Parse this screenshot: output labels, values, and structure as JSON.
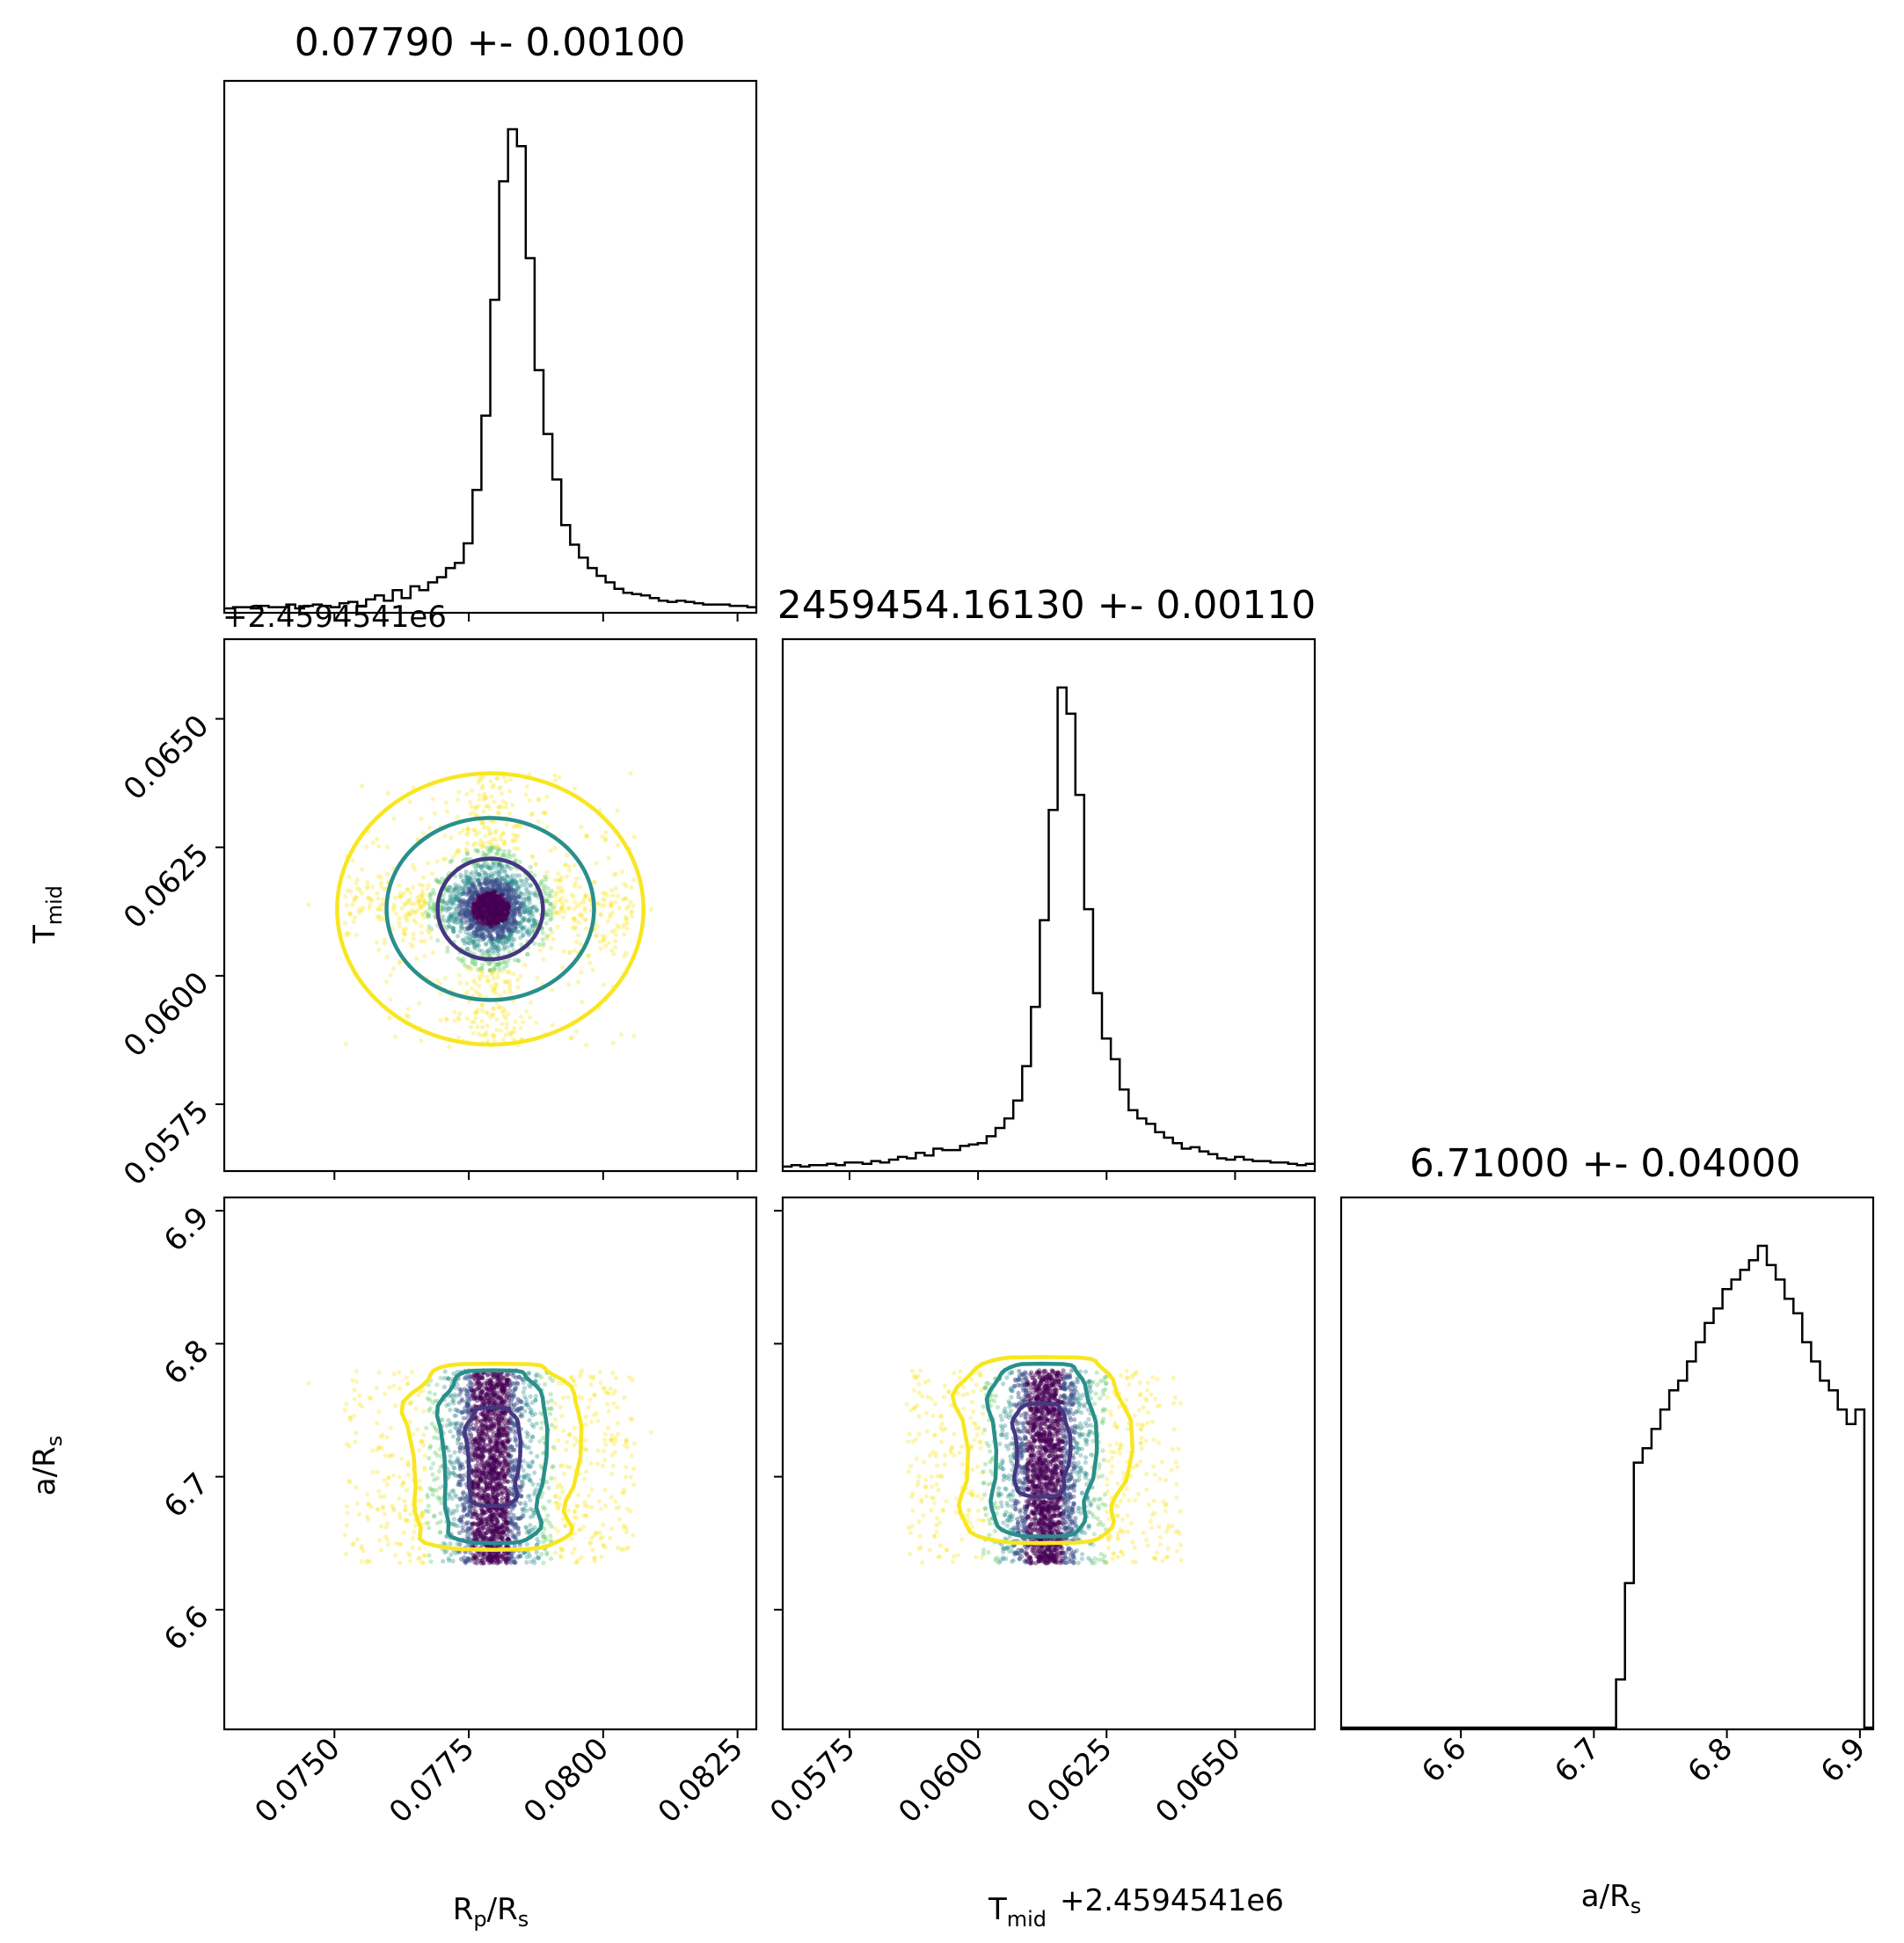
{
  "chart_data": {
    "type": "corner",
    "parameters": [
      {
        "key": "rprs",
        "label_main": "R",
        "label_sub": "p",
        "label_mid": "/R",
        "label_sub2": "s",
        "title": "0.07790 +- 0.00100",
        "range": [
          0.07295,
          0.08285
        ],
        "ticks": [
          0.075,
          0.0775,
          0.08,
          0.0825
        ],
        "tick_labels": [
          "0.0750",
          "0.0775",
          "0.0800",
          "0.0825"
        ],
        "offset_label": "+2.4594541e6"
      },
      {
        "key": "tmid",
        "label_main": "T",
        "label_sub": "mid",
        "label_mid": "",
        "label_sub2": "",
        "title": "2459454.16130 +- 0.00110",
        "range": [
          0.0562,
          0.06655
        ],
        "ticks": [
          0.0575,
          0.06,
          0.0625,
          0.065
        ],
        "tick_labels": [
          "0.0575",
          "0.0600",
          "0.0625",
          "0.0650"
        ],
        "offset_label": "+2.4594541e6"
      },
      {
        "key": "ars",
        "label_main": "a",
        "label_sub": "",
        "label_mid": "/R",
        "label_sub2": "s",
        "title": "6.71000 +- 0.04000",
        "range": [
          6.51,
          6.91
        ],
        "ticks": [
          6.6,
          6.7,
          6.8,
          6.9
        ],
        "tick_labels": [
          "6.6",
          "6.7",
          "6.8",
          "6.9"
        ]
      }
    ],
    "histograms": {
      "rprs": {
        "bins": 60,
        "counts": [
          2,
          3,
          3,
          2,
          4,
          3,
          3,
          5,
          2,
          4,
          5,
          4,
          3,
          6,
          7,
          4,
          9,
          12,
          8,
          16,
          10,
          19,
          16,
          22,
          26,
          33,
          37,
          52,
          93,
          150,
          239,
          330,
          370,
          357,
          271,
          185,
          136,
          101,
          66,
          51,
          41,
          33,
          27,
          22,
          17,
          14,
          13,
          12,
          10,
          8,
          7,
          8,
          7,
          6,
          5,
          5,
          5,
          4,
          4,
          3
        ]
      },
      "tmid": {
        "bins": 60,
        "counts": [
          2,
          3,
          2,
          3,
          3,
          4,
          3,
          5,
          5,
          4,
          6,
          5,
          7,
          9,
          8,
          12,
          10,
          15,
          14,
          14,
          17,
          18,
          19,
          24,
          30,
          37,
          50,
          75,
          118,
          181,
          261,
          350,
          331,
          272,
          189,
          128,
          95,
          80,
          58,
          43,
          37,
          33,
          27,
          23,
          19,
          15,
          16,
          13,
          11,
          8,
          7,
          9,
          7,
          6,
          6,
          5,
          5,
          4,
          3,
          4
        ]
      },
      "ars": {
        "bins": 60,
        "counts": [
          0,
          0,
          0,
          0,
          0,
          0,
          0,
          0,
          0,
          0,
          0,
          0,
          0,
          0,
          0,
          0,
          0,
          0,
          0,
          0,
          0,
          0,
          0,
          0,
          0,
          0,
          0,
          0,
          0,
          0,
          0,
          10,
          30,
          55,
          58,
          62,
          66,
          70,
          72,
          76,
          80,
          84,
          87,
          91,
          93,
          95,
          97,
          100,
          96,
          93,
          89,
          86,
          80,
          76,
          72,
          70,
          66,
          63,
          66,
          0
        ]
      }
    },
    "scatter": {
      "rprs_mean": 0.0779,
      "rprs_sigma": 0.0003,
      "tmid_mean": 0.0613,
      "tmid_sigma": 0.0003,
      "ars_low": 6.635,
      "ars_high": 6.78,
      "n_points": 2600,
      "seed": 12345
    },
    "contours": {
      "tmid_vs_rprs": [
        {
          "level": "inner",
          "center": [
            0.0779,
            0.0613
          ],
          "radii": [
            0.00098,
            0.00098
          ],
          "color": "#453781"
        },
        {
          "level": "middle",
          "center": [
            0.0779,
            0.0613
          ],
          "radii": [
            0.00193,
            0.00177
          ],
          "color": "#2a8f8b"
        },
        {
          "level": "outer",
          "center": [
            0.0779,
            0.0613
          ],
          "radii": [
            0.00285,
            0.00264
          ],
          "color": "#f8e621"
        }
      ],
      "ars_vs_rprs": [
        {
          "level": "inner",
          "center": [
            0.07795,
            6.715
          ],
          "half_widths": [
            0.00048,
            0.037
          ],
          "color": "#453781"
        },
        {
          "level": "middle",
          "center": [
            0.07795,
            6.715
          ],
          "half_widths": [
            0.00095,
            0.065
          ],
          "color": "#2a8f8b"
        },
        {
          "level": "outer",
          "center": [
            0.07795,
            6.715
          ],
          "half_widths": [
            0.00155,
            0.07
          ],
          "color": "#f8e621"
        }
      ],
      "ars_vs_tmid": [
        {
          "level": "inner",
          "center": [
            0.06122,
            6.72
          ],
          "half_widths": [
            0.00052,
            0.035
          ],
          "color": "#453781"
        },
        {
          "level": "middle",
          "center": [
            0.06122,
            6.72
          ],
          "half_widths": [
            0.00098,
            0.065
          ],
          "color": "#2a8f8b"
        },
        {
          "level": "outer",
          "center": [
            0.06122,
            6.72
          ],
          "half_widths": [
            0.0016,
            0.07
          ],
          "color": "#f8e621"
        }
      ]
    },
    "colors": {
      "dark": "#440154",
      "mid": "#2a8f8b",
      "light": "#f8e621",
      "hist": "#000000"
    }
  }
}
